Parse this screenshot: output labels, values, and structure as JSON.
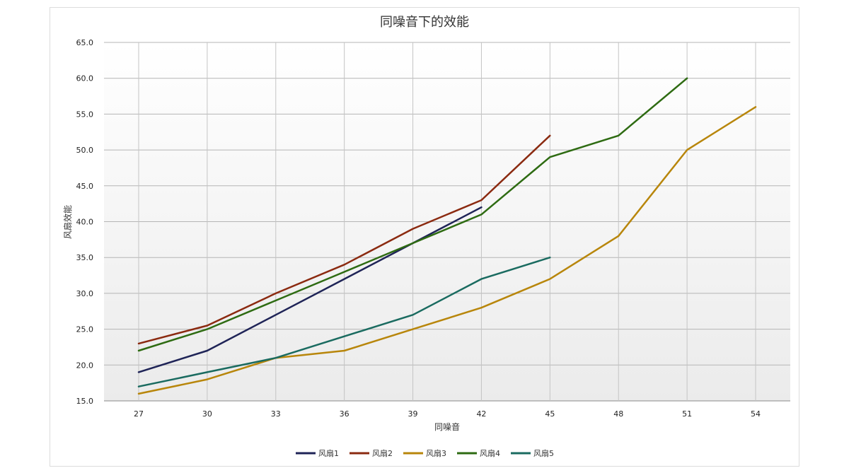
{
  "chart_data": {
    "type": "line",
    "title": "同噪音下的效能",
    "xlabel": "同噪音",
    "ylabel": "风扇效能",
    "x": [
      27,
      30,
      33,
      36,
      39,
      42,
      45,
      48,
      51,
      54
    ],
    "ylim": [
      15,
      65
    ],
    "y_ticks": [
      "15.0",
      "20.0",
      "25.0",
      "30.0",
      "35.0",
      "40.0",
      "45.0",
      "50.0",
      "55.0",
      "60.0",
      "65.0"
    ],
    "grid": true,
    "legend_position": "bottom",
    "series": [
      {
        "name": "风扇1",
        "color": "#1f2457",
        "values": [
          19,
          22,
          27,
          32,
          37,
          42,
          null,
          null,
          null,
          null
        ]
      },
      {
        "name": "风扇2",
        "color": "#8b2a10",
        "values": [
          23,
          25.5,
          30,
          34,
          39,
          43,
          52,
          null,
          null,
          null
        ]
      },
      {
        "name": "风扇3",
        "color": "#b8860b",
        "values": [
          16,
          18,
          21,
          22,
          25,
          28,
          32,
          38,
          50,
          56
        ]
      },
      {
        "name": "风扇4",
        "color": "#2e6b12",
        "values": [
          22,
          25,
          29,
          33,
          37,
          41,
          49,
          52,
          60,
          null
        ]
      },
      {
        "name": "风扇5",
        "color": "#1a6b60",
        "values": [
          17,
          19,
          21,
          24,
          27,
          32,
          35,
          null,
          null,
          null
        ]
      }
    ]
  }
}
